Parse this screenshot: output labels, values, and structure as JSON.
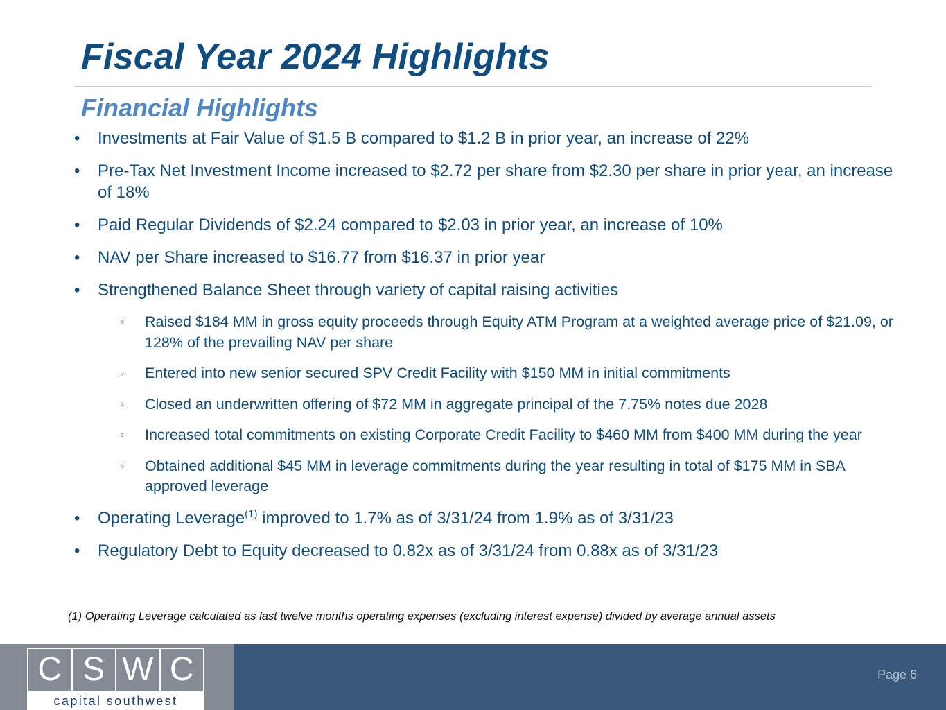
{
  "title": "Fiscal Year 2024 Highlights",
  "subtitle": "Financial Highlights",
  "bullets": [
    {
      "marker": "•",
      "text": "Investments at Fair Value of $1.5 B compared to $1.2 B in prior year, an increase of 22%"
    },
    {
      "marker": "•",
      "text": "Pre-Tax Net Investment Income increased to $2.72 per share from $2.30 per share in prior year, an increase of 18%"
    },
    {
      "marker": "•",
      "text": "Paid Regular Dividends of $2.24 compared to $2.03 in prior year, an increase of 10%"
    },
    {
      "marker": "•",
      "text": "NAV per Share increased to $16.77 from $16.37 in prior year"
    },
    {
      "marker": "•",
      "text": "Strengthened Balance Sheet through variety of capital raising activities"
    }
  ],
  "sub_bullets": [
    {
      "marker": "◦",
      "text": "Raised $184 MM in gross equity proceeds through Equity ATM Program at a weighted average price of $21.09, or 128% of the prevailing NAV per share"
    },
    {
      "marker": "◦",
      "text": "Entered into new senior secured SPV Credit Facility with $150 MM in initial commitments"
    },
    {
      "marker": "◦",
      "text": "Closed an underwritten offering of $72 MM in aggregate principal of the 7.75% notes due 2028"
    },
    {
      "marker": "◦",
      "text": "Increased total commitments on existing Corporate Credit Facility to $460 MM from $400 MM during the year"
    },
    {
      "marker": "◦",
      "text": "Obtained additional $45 MM in leverage commitments during the year resulting in total of $175 MM in SBA approved leverage"
    }
  ],
  "bullets_after": [
    {
      "marker": "•",
      "text_before": "Operating Leverage",
      "sup": "(1)",
      "text_after": " improved to 1.7% as of 3/31/24 from 1.9% as of 3/31/23"
    },
    {
      "marker": "•",
      "text": "Regulatory Debt to Equity decreased to 0.82x as of 3/31/24 from 0.88x as of 3/31/23"
    }
  ],
  "footnote": "(1) Operating Leverage calculated as last twelve months operating expenses (excluding interest expense) divided by average annual assets",
  "logo": {
    "letters": [
      "C",
      "S",
      "W",
      "C"
    ],
    "name": "capital southwest"
  },
  "page_label": "Page 6",
  "colors": {
    "title": "#0f4c7f",
    "subtitle": "#4f86c6",
    "footer_bar": "#39587c",
    "logo_block": "#848b94"
  }
}
